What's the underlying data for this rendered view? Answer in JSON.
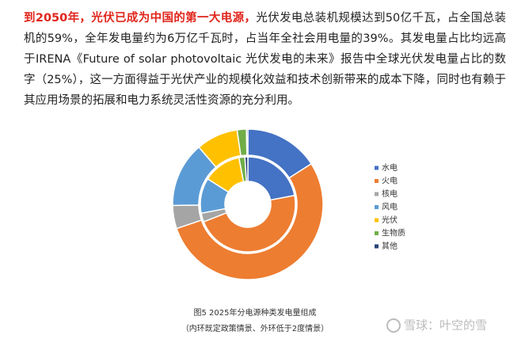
{
  "paragraph": {
    "highlight": "到2050年，光伏已成为中国的第一大电源，",
    "body": "光伏发电总装机规模达到50亿千瓦，占全国总装机的59%，全年发电量约为6万亿千瓦时，占当年全社会用电量的39%。其发电量占比均远高于IRENA《Future of solar photovoltaic 光伏发电的未来》报告中全球光伏发电量占比的数字（25%），这一方面得益于光伏产业的规模化效益和技术创新带来的成本下降，同时也有赖于其应用场景的拓展和电力系统灵活性资源的充分利用。"
  },
  "chart_data": {
    "type": "donut",
    "categories": [
      "水电",
      "火电",
      "核电",
      "风电",
      "光伏",
      "生物质",
      "其他"
    ],
    "colors": [
      "#4472c4",
      "#ed7d31",
      "#a5a5a5",
      "#5b9bd5",
      "#ffc000",
      "#70ad47",
      "#264478"
    ],
    "series": [
      {
        "values": [
          16,
          54,
          5,
          14,
          9,
          2,
          0.3
        ]
      },
      {
        "values": [
          22,
          47,
          3,
          12,
          13,
          2,
          1
        ]
      }
    ]
  },
  "caption": {
    "title": "图5  2025年分电源种类发电量组成",
    "note": "（内环既定政策情景、外环低于2度情景）"
  },
  "watermark": "雪球：叶空的雪"
}
